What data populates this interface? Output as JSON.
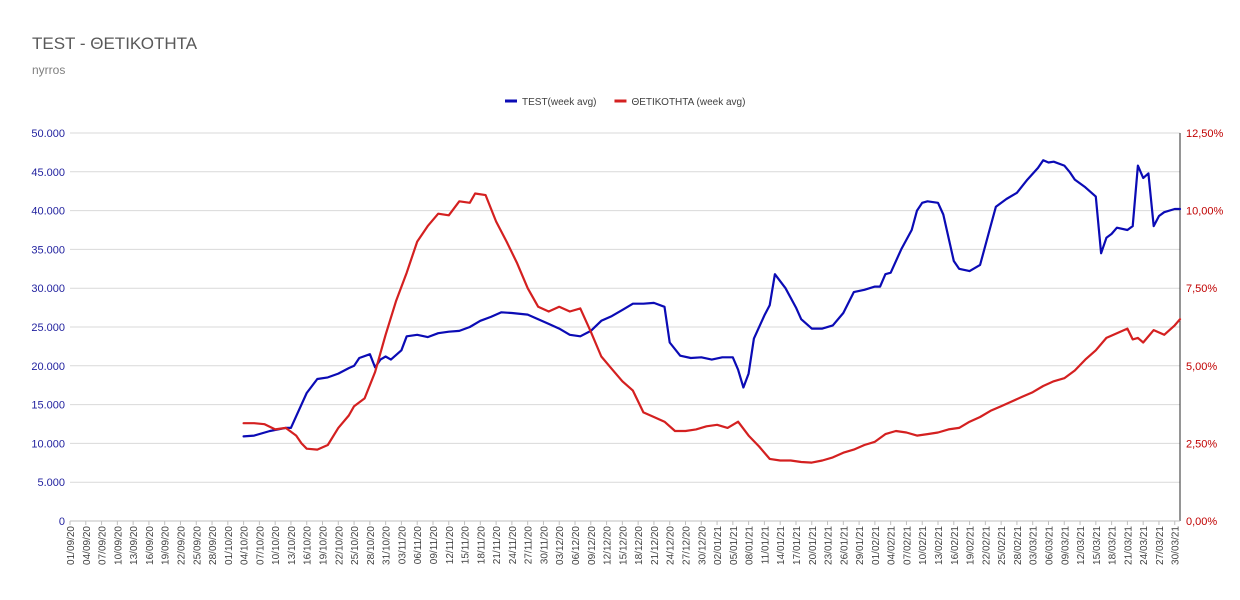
{
  "chart_data": {
    "type": "line",
    "title": "TEST - ΘΕΤΙΚΟΤΗΤΑ",
    "subtitle": "nyrros",
    "legend_position": "top",
    "grid": true,
    "x_ticks": [
      "01/09/20",
      "04/09/20",
      "07/09/20",
      "10/09/20",
      "13/09/20",
      "16/09/20",
      "19/09/20",
      "22/09/20",
      "25/09/20",
      "28/09/20",
      "01/10/20",
      "04/10/20",
      "07/10/20",
      "10/10/20",
      "13/10/20",
      "16/10/20",
      "19/10/20",
      "22/10/20",
      "25/10/20",
      "28/10/20",
      "31/10/20",
      "03/11/20",
      "06/11/20",
      "09/11/20",
      "12/11/20",
      "15/11/20",
      "18/11/20",
      "21/11/20",
      "24/11/20",
      "27/11/20",
      "30/11/20",
      "03/12/20",
      "06/12/20",
      "09/12/20",
      "12/12/20",
      "15/12/20",
      "18/12/20",
      "21/12/20",
      "24/12/20",
      "27/12/20",
      "30/12/20",
      "02/01/21",
      "05/01/21",
      "08/01/21",
      "11/01/21",
      "14/01/21",
      "17/01/21",
      "20/01/21",
      "23/01/21",
      "26/01/21",
      "29/01/21",
      "01/02/21",
      "04/02/21",
      "07/02/21",
      "10/02/21",
      "13/02/21",
      "16/02/21",
      "19/02/21",
      "22/02/21",
      "25/02/21",
      "28/02/21",
      "03/03/21",
      "06/03/21",
      "09/03/21",
      "12/03/21",
      "15/03/21",
      "18/03/21",
      "21/03/21",
      "24/03/21",
      "27/03/21",
      "30/03/21"
    ],
    "y_left": {
      "ticks": [
        "0",
        "5.000",
        "10.000",
        "15.000",
        "20.000",
        "25.000",
        "30.000",
        "35.000",
        "40.000",
        "45.000",
        "50.000"
      ],
      "ylim": [
        0,
        50000
      ]
    },
    "y_right": {
      "ticks": [
        "0,00%",
        "2,50%",
        "5,00%",
        "7,50%",
        "10,00%",
        "12,50%"
      ],
      "ylim": [
        0,
        12.5
      ]
    },
    "series": [
      {
        "name": "TEST(week avg)",
        "axis": "left",
        "color": "#0b0bb5",
        "points": [
          [
            "04/10/20",
            10900
          ],
          [
            "06/10/20",
            11000
          ],
          [
            "09/10/20",
            11600
          ],
          [
            "12/10/20",
            12000
          ],
          [
            "13/10/20",
            12000
          ],
          [
            "14/10/20",
            13500
          ],
          [
            "16/10/20",
            16500
          ],
          [
            "18/10/20",
            18300
          ],
          [
            "20/10/20",
            18500
          ],
          [
            "22/10/20",
            19000
          ],
          [
            "24/10/20",
            19700
          ],
          [
            "25/10/20",
            20000
          ],
          [
            "26/10/20",
            21000
          ],
          [
            "28/10/20",
            21500
          ],
          [
            "29/10/20",
            19800
          ],
          [
            "30/10/20",
            20800
          ],
          [
            "31/10/20",
            21200
          ],
          [
            "01/11/20",
            20800
          ],
          [
            "03/11/20",
            22000
          ],
          [
            "04/11/20",
            23800
          ],
          [
            "06/11/20",
            24000
          ],
          [
            "08/11/20",
            23700
          ],
          [
            "10/11/20",
            24200
          ],
          [
            "12/11/20",
            24400
          ],
          [
            "14/11/20",
            24500
          ],
          [
            "16/11/20",
            25000
          ],
          [
            "18/11/20",
            25800
          ],
          [
            "20/11/20",
            26300
          ],
          [
            "22/11/20",
            26900
          ],
          [
            "24/11/20",
            26800
          ],
          [
            "27/11/20",
            26600
          ],
          [
            "29/11/20",
            26000
          ],
          [
            "01/12/20",
            25400
          ],
          [
            "03/12/20",
            24800
          ],
          [
            "05/12/20",
            24000
          ],
          [
            "07/12/20",
            23800
          ],
          [
            "09/12/20",
            24500
          ],
          [
            "11/12/20",
            25800
          ],
          [
            "13/12/20",
            26400
          ],
          [
            "15/12/20",
            27200
          ],
          [
            "17/12/20",
            28000
          ],
          [
            "19/12/20",
            28000
          ],
          [
            "21/12/20",
            28100
          ],
          [
            "23/12/20",
            27600
          ],
          [
            "24/12/20",
            23000
          ],
          [
            "26/12/20",
            21300
          ],
          [
            "28/12/20",
            21000
          ],
          [
            "30/12/20",
            21100
          ],
          [
            "01/01/21",
            20800
          ],
          [
            "03/01/21",
            21100
          ],
          [
            "05/01/21",
            21100
          ],
          [
            "06/01/21",
            19500
          ],
          [
            "07/01/21",
            17200
          ],
          [
            "08/01/21",
            19000
          ],
          [
            "09/01/21",
            23500
          ],
          [
            "11/01/21",
            26500
          ],
          [
            "12/01/21",
            27800
          ],
          [
            "13/01/21",
            31800
          ],
          [
            "15/01/21",
            30000
          ],
          [
            "17/01/21",
            27500
          ],
          [
            "18/01/21",
            26000
          ],
          [
            "20/01/21",
            24800
          ],
          [
            "22/01/21",
            24800
          ],
          [
            "24/01/21",
            25200
          ],
          [
            "26/01/21",
            26800
          ],
          [
            "28/01/21",
            29500
          ],
          [
            "30/01/21",
            29800
          ],
          [
            "01/02/21",
            30200
          ],
          [
            "02/02/21",
            30200
          ],
          [
            "03/02/21",
            31800
          ],
          [
            "04/02/21",
            32000
          ],
          [
            "06/02/21",
            35000
          ],
          [
            "08/02/21",
            37500
          ],
          [
            "09/02/21",
            40000
          ],
          [
            "10/02/21",
            41000
          ],
          [
            "11/02/21",
            41200
          ],
          [
            "13/02/21",
            41000
          ],
          [
            "14/02/21",
            39500
          ],
          [
            "16/02/21",
            33500
          ],
          [
            "17/02/21",
            32500
          ],
          [
            "19/02/21",
            32200
          ],
          [
            "21/02/21",
            33000
          ],
          [
            "23/02/21",
            38000
          ],
          [
            "24/02/21",
            40500
          ],
          [
            "26/02/21",
            41500
          ],
          [
            "28/02/21",
            42300
          ],
          [
            "02/03/21",
            44000
          ],
          [
            "04/03/21",
            45500
          ],
          [
            "05/03/21",
            46500
          ],
          [
            "06/03/21",
            46200
          ],
          [
            "07/03/21",
            46300
          ],
          [
            "09/03/21",
            45800
          ],
          [
            "10/03/21",
            45000
          ],
          [
            "11/03/21",
            44000
          ],
          [
            "13/03/21",
            43000
          ],
          [
            "15/03/21",
            41800
          ],
          [
            "16/03/21",
            34500
          ],
          [
            "17/03/21",
            36500
          ],
          [
            "18/03/21",
            37000
          ],
          [
            "19/03/21",
            37800
          ],
          [
            "21/03/21",
            37500
          ],
          [
            "22/03/21",
            38000
          ],
          [
            "23/03/21",
            45800
          ],
          [
            "24/03/21",
            44200
          ],
          [
            "25/03/21",
            44800
          ],
          [
            "26/03/21",
            38000
          ],
          [
            "27/03/21",
            39300
          ],
          [
            "28/03/21",
            39800
          ],
          [
            "30/03/21",
            40200
          ],
          [
            "31/03/21",
            40200
          ]
        ]
      },
      {
        "name": "ΘΕΤΙΚΟΤΗΤΑ (week avg)",
        "axis": "right",
        "color": "#d42020",
        "points": [
          [
            "04/10/20",
            3.15
          ],
          [
            "06/10/20",
            3.15
          ],
          [
            "08/10/20",
            3.12
          ],
          [
            "10/10/20",
            2.95
          ],
          [
            "12/10/20",
            3.0
          ],
          [
            "14/10/20",
            2.75
          ],
          [
            "15/10/20",
            2.5
          ],
          [
            "16/10/20",
            2.33
          ],
          [
            "18/10/20",
            2.3
          ],
          [
            "20/10/20",
            2.45
          ],
          [
            "22/10/20",
            3.0
          ],
          [
            "24/10/20",
            3.4
          ],
          [
            "25/10/20",
            3.7
          ],
          [
            "27/10/20",
            3.95
          ],
          [
            "29/10/20",
            4.8
          ],
          [
            "31/10/20",
            6.0
          ],
          [
            "02/11/20",
            7.1
          ],
          [
            "04/11/20",
            8.0
          ],
          [
            "06/11/20",
            9.0
          ],
          [
            "08/11/20",
            9.5
          ],
          [
            "10/11/20",
            9.9
          ],
          [
            "12/11/20",
            9.85
          ],
          [
            "14/11/20",
            10.3
          ],
          [
            "16/11/20",
            10.25
          ],
          [
            "17/11/20",
            10.55
          ],
          [
            "19/11/20",
            10.5
          ],
          [
            "21/11/20",
            9.65
          ],
          [
            "23/11/20",
            9.0
          ],
          [
            "25/11/20",
            8.3
          ],
          [
            "27/11/20",
            7.5
          ],
          [
            "29/11/20",
            6.9
          ],
          [
            "01/12/20",
            6.75
          ],
          [
            "03/12/20",
            6.9
          ],
          [
            "05/12/20",
            6.75
          ],
          [
            "07/12/20",
            6.85
          ],
          [
            "09/12/20",
            6.1
          ],
          [
            "11/12/20",
            5.3
          ],
          [
            "13/12/20",
            4.9
          ],
          [
            "15/12/20",
            4.5
          ],
          [
            "17/12/20",
            4.2
          ],
          [
            "19/12/20",
            3.5
          ],
          [
            "21/12/20",
            3.35
          ],
          [
            "23/12/20",
            3.2
          ],
          [
            "25/12/20",
            2.9
          ],
          [
            "27/12/20",
            2.9
          ],
          [
            "29/12/20",
            2.95
          ],
          [
            "31/12/20",
            3.05
          ],
          [
            "02/01/21",
            3.1
          ],
          [
            "04/01/21",
            3.0
          ],
          [
            "06/01/21",
            3.2
          ],
          [
            "08/01/21",
            2.75
          ],
          [
            "10/01/21",
            2.4
          ],
          [
            "12/01/21",
            2.0
          ],
          [
            "14/01/21",
            1.95
          ],
          [
            "16/01/21",
            1.95
          ],
          [
            "18/01/21",
            1.9
          ],
          [
            "20/01/21",
            1.88
          ],
          [
            "22/01/21",
            1.95
          ],
          [
            "24/01/21",
            2.05
          ],
          [
            "26/01/21",
            2.2
          ],
          [
            "28/01/21",
            2.3
          ],
          [
            "30/01/21",
            2.45
          ],
          [
            "01/02/21",
            2.55
          ],
          [
            "03/02/21",
            2.8
          ],
          [
            "05/02/21",
            2.9
          ],
          [
            "07/02/21",
            2.85
          ],
          [
            "09/02/21",
            2.75
          ],
          [
            "11/02/21",
            2.8
          ],
          [
            "13/02/21",
            2.85
          ],
          [
            "15/02/21",
            2.95
          ],
          [
            "17/02/21",
            3.0
          ],
          [
            "19/02/21",
            3.2
          ],
          [
            "21/02/21",
            3.35
          ],
          [
            "23/02/21",
            3.55
          ],
          [
            "25/02/21",
            3.7
          ],
          [
            "27/02/21",
            3.85
          ],
          [
            "01/03/21",
            4.0
          ],
          [
            "03/03/21",
            4.15
          ],
          [
            "05/03/21",
            4.35
          ],
          [
            "07/03/21",
            4.5
          ],
          [
            "09/03/21",
            4.6
          ],
          [
            "11/03/21",
            4.85
          ],
          [
            "13/03/21",
            5.2
          ],
          [
            "15/03/21",
            5.5
          ],
          [
            "17/03/21",
            5.9
          ],
          [
            "19/03/21",
            6.05
          ],
          [
            "21/03/21",
            6.2
          ],
          [
            "22/03/21",
            5.85
          ],
          [
            "23/03/21",
            5.9
          ],
          [
            "24/03/21",
            5.75
          ],
          [
            "26/03/21",
            6.15
          ],
          [
            "28/03/21",
            6.0
          ],
          [
            "30/03/21",
            6.3
          ],
          [
            "31/03/21",
            6.5
          ]
        ]
      }
    ]
  }
}
